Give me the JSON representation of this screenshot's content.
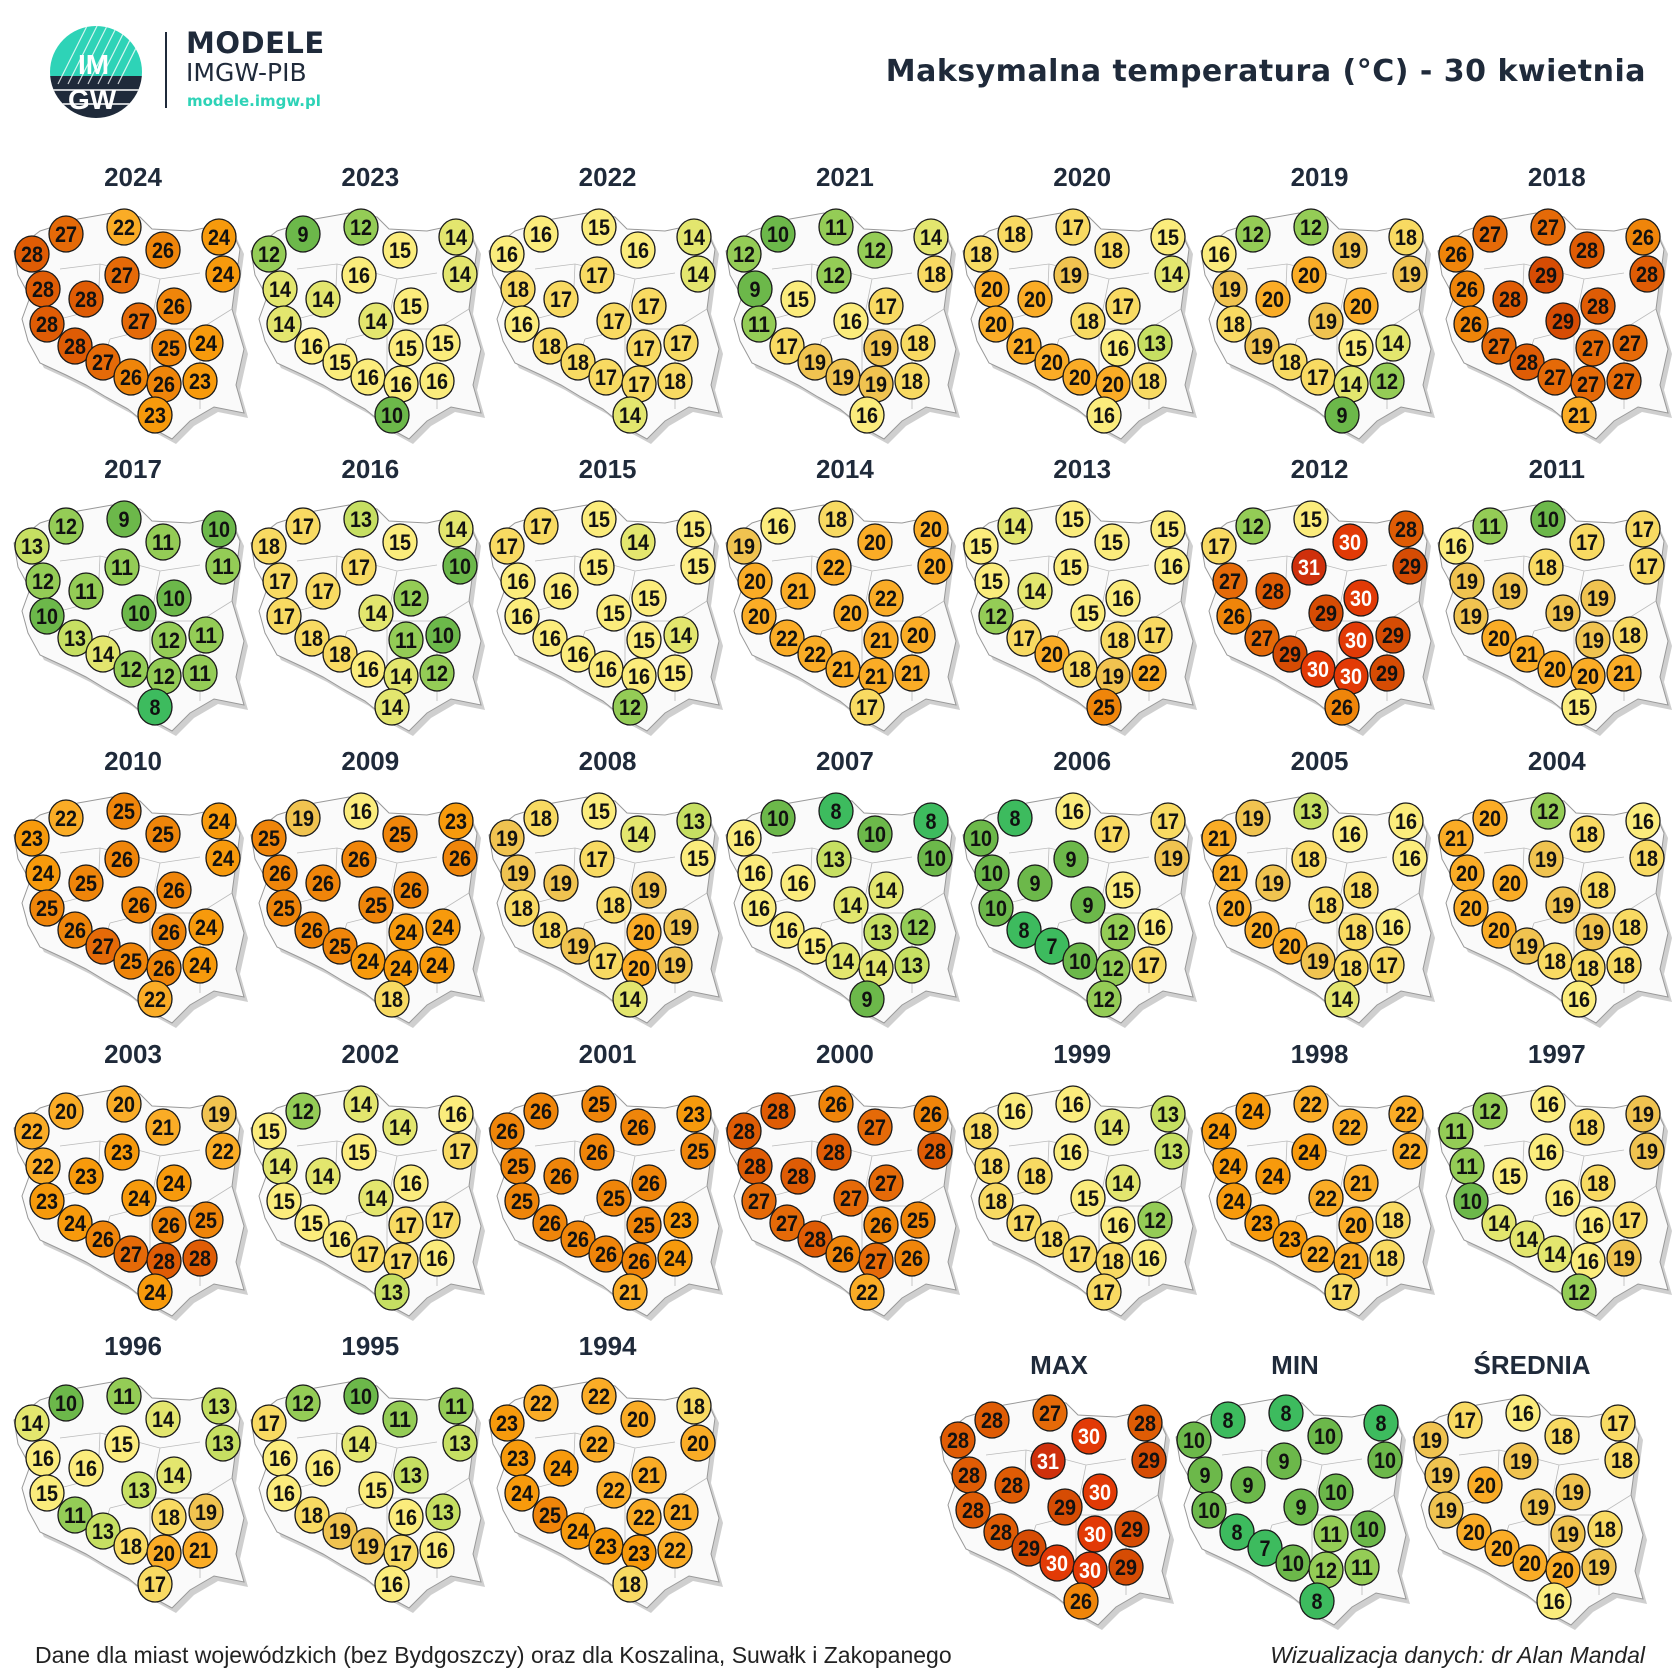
{
  "header": {
    "logo_text": "IMGW",
    "brand_title": "MODELE",
    "brand_subtitle": "IMGW-PIB",
    "brand_url": "modele.imgw.pl",
    "title": "Maksymalna temperatura (°C) - 30 kwietnia"
  },
  "footer": {
    "note": "Dane dla miast wojewódzkich (bez Bydgoszczy) oraz dla Koszalina, Suwałk i Zakopanego",
    "credit": "Wizualizacja danych: dr Alan Mandal"
  },
  "chart_data": {
    "type": "table",
    "title": "Maksymalna temperatura (°C) - 30 kwietnia",
    "unit": "°C",
    "maps": [
      {
        "label": "2024",
        "values": [
          28,
          27,
          22,
          26,
          24,
          24,
          28,
          27,
          28,
          26,
          28,
          27,
          24,
          28,
          25,
          27,
          26,
          26,
          23,
          23
        ]
      },
      {
        "label": "2023",
        "values": [
          12,
          9,
          12,
          15,
          14,
          14,
          14,
          16,
          14,
          15,
          14,
          14,
          15,
          16,
          15,
          15,
          16,
          16,
          16,
          10
        ]
      },
      {
        "label": "2022",
        "values": [
          16,
          16,
          15,
          16,
          14,
          14,
          18,
          17,
          17,
          17,
          16,
          17,
          17,
          18,
          17,
          18,
          17,
          17,
          18,
          14
        ]
      },
      {
        "label": "2021",
        "values": [
          12,
          10,
          11,
          12,
          14,
          18,
          9,
          12,
          15,
          17,
          11,
          16,
          18,
          17,
          19,
          19,
          19,
          19,
          18,
          16
        ]
      },
      {
        "label": "2020",
        "values": [
          18,
          18,
          17,
          18,
          15,
          14,
          20,
          19,
          20,
          17,
          20,
          18,
          13,
          21,
          16,
          20,
          20,
          20,
          18,
          16
        ]
      },
      {
        "label": "2019",
        "values": [
          16,
          12,
          12,
          19,
          18,
          19,
          19,
          20,
          20,
          20,
          18,
          19,
          14,
          19,
          15,
          18,
          17,
          14,
          12,
          9
        ]
      },
      {
        "label": "2018",
        "values": [
          26,
          27,
          27,
          28,
          26,
          28,
          26,
          29,
          28,
          28,
          26,
          29,
          27,
          27,
          27,
          28,
          27,
          27,
          27,
          21
        ]
      },
      {
        "label": "2017",
        "values": [
          13,
          12,
          9,
          11,
          10,
          11,
          12,
          11,
          11,
          10,
          10,
          10,
          11,
          13,
          12,
          14,
          12,
          12,
          11,
          8
        ]
      },
      {
        "label": "2016",
        "values": [
          18,
          17,
          13,
          15,
          14,
          10,
          17,
          17,
          17,
          12,
          17,
          14,
          10,
          18,
          11,
          18,
          16,
          14,
          12,
          14
        ]
      },
      {
        "label": "2015",
        "values": [
          17,
          17,
          15,
          14,
          15,
          15,
          16,
          15,
          16,
          15,
          16,
          15,
          14,
          16,
          15,
          16,
          16,
          16,
          15,
          12
        ]
      },
      {
        "label": "2014",
        "values": [
          19,
          16,
          18,
          20,
          20,
          20,
          20,
          22,
          21,
          22,
          20,
          20,
          20,
          22,
          21,
          22,
          21,
          21,
          21,
          17
        ]
      },
      {
        "label": "2013",
        "values": [
          15,
          14,
          15,
          15,
          15,
          16,
          15,
          15,
          14,
          16,
          12,
          15,
          17,
          17,
          18,
          20,
          18,
          19,
          22,
          25
        ]
      },
      {
        "label": "2012",
        "values": [
          17,
          12,
          15,
          30,
          28,
          29,
          27,
          31,
          28,
          30,
          26,
          29,
          29,
          27,
          30,
          29,
          30,
          30,
          29,
          26
        ]
      },
      {
        "label": "2011",
        "values": [
          16,
          11,
          10,
          17,
          17,
          17,
          19,
          18,
          19,
          19,
          19,
          19,
          18,
          20,
          19,
          21,
          20,
          20,
          21,
          15
        ]
      },
      {
        "label": "2010",
        "values": [
          23,
          22,
          25,
          25,
          24,
          24,
          24,
          26,
          25,
          26,
          25,
          26,
          24,
          26,
          26,
          27,
          25,
          26,
          24,
          22
        ]
      },
      {
        "label": "2009",
        "values": [
          25,
          19,
          16,
          25,
          23,
          26,
          26,
          26,
          26,
          26,
          25,
          25,
          24,
          26,
          24,
          25,
          24,
          24,
          24,
          18
        ]
      },
      {
        "label": "2008",
        "values": [
          19,
          18,
          15,
          14,
          13,
          15,
          19,
          17,
          19,
          19,
          18,
          18,
          19,
          18,
          20,
          19,
          17,
          20,
          19,
          14
        ]
      },
      {
        "label": "2007",
        "values": [
          16,
          10,
          8,
          10,
          8,
          10,
          16,
          13,
          16,
          14,
          16,
          14,
          12,
          16,
          13,
          15,
          14,
          14,
          13,
          9
        ]
      },
      {
        "label": "2006",
        "values": [
          10,
          8,
          16,
          17,
          17,
          19,
          10,
          9,
          9,
          15,
          10,
          9,
          16,
          8,
          12,
          7,
          10,
          12,
          17,
          12
        ]
      },
      {
        "label": "2005",
        "values": [
          21,
          19,
          13,
          16,
          16,
          16,
          21,
          18,
          19,
          18,
          20,
          18,
          16,
          20,
          18,
          20,
          19,
          18,
          17,
          14
        ]
      },
      {
        "label": "2004",
        "values": [
          21,
          20,
          12,
          18,
          16,
          18,
          20,
          19,
          20,
          18,
          20,
          19,
          18,
          20,
          19,
          19,
          18,
          18,
          18,
          16
        ]
      },
      {
        "label": "2003",
        "values": [
          22,
          20,
          20,
          21,
          19,
          22,
          22,
          23,
          23,
          24,
          23,
          24,
          25,
          24,
          26,
          26,
          27,
          28,
          28,
          24
        ]
      },
      {
        "label": "2002",
        "values": [
          15,
          12,
          14,
          14,
          16,
          17,
          14,
          15,
          14,
          16,
          15,
          14,
          17,
          15,
          17,
          16,
          17,
          17,
          16,
          13
        ]
      },
      {
        "label": "2001",
        "values": [
          26,
          26,
          25,
          26,
          23,
          25,
          25,
          26,
          26,
          26,
          25,
          25,
          23,
          26,
          25,
          26,
          26,
          26,
          24,
          21
        ]
      },
      {
        "label": "2000",
        "values": [
          28,
          28,
          26,
          27,
          26,
          28,
          28,
          28,
          28,
          27,
          27,
          27,
          25,
          27,
          26,
          28,
          26,
          27,
          26,
          22
        ]
      },
      {
        "label": "1999",
        "values": [
          18,
          16,
          16,
          14,
          13,
          13,
          18,
          16,
          18,
          14,
          18,
          15,
          12,
          17,
          16,
          18,
          17,
          18,
          16,
          17
        ]
      },
      {
        "label": "1998",
        "values": [
          24,
          24,
          22,
          22,
          22,
          22,
          24,
          24,
          24,
          21,
          24,
          22,
          18,
          23,
          20,
          23,
          22,
          21,
          18,
          17
        ]
      },
      {
        "label": "1997",
        "values": [
          11,
          12,
          16,
          18,
          19,
          19,
          11,
          16,
          15,
          18,
          10,
          16,
          17,
          14,
          16,
          14,
          14,
          16,
          19,
          12
        ]
      },
      {
        "label": "1996",
        "values": [
          14,
          10,
          11,
          14,
          13,
          13,
          16,
          15,
          16,
          14,
          15,
          13,
          19,
          11,
          18,
          13,
          18,
          20,
          21,
          17
        ]
      },
      {
        "label": "1995",
        "values": [
          17,
          12,
          10,
          11,
          11,
          13,
          16,
          14,
          16,
          13,
          16,
          15,
          13,
          18,
          16,
          19,
          19,
          17,
          16,
          16
        ]
      },
      {
        "label": "1994",
        "values": [
          23,
          22,
          22,
          20,
          18,
          20,
          23,
          22,
          24,
          21,
          24,
          22,
          21,
          25,
          22,
          24,
          23,
          23,
          22,
          18
        ]
      },
      {
        "label": "MAX",
        "values": [
          28,
          28,
          27,
          30,
          28,
          29,
          28,
          31,
          28,
          30,
          28,
          29,
          29,
          28,
          30,
          29,
          30,
          30,
          29,
          26
        ]
      },
      {
        "label": "MIN",
        "values": [
          10,
          8,
          8,
          10,
          8,
          10,
          9,
          9,
          9,
          10,
          10,
          9,
          10,
          8,
          11,
          7,
          10,
          12,
          11,
          8
        ]
      },
      {
        "label": "ŚREDNIA",
        "values": [
          19,
          17,
          16,
          18,
          17,
          18,
          19,
          19,
          20,
          19,
          19,
          19,
          18,
          20,
          19,
          20,
          20,
          20,
          19,
          16
        ]
      }
    ]
  }
}
